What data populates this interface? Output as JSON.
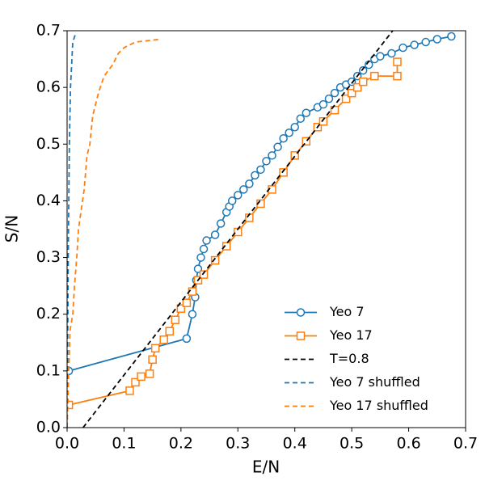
{
  "chart_data": {
    "type": "line",
    "xlabel": "E/N",
    "ylabel": "S/N",
    "xlim": [
      0,
      0.7
    ],
    "ylim": [
      0,
      0.7
    ],
    "xticks": [
      {
        "value": 0,
        "label": "0.0"
      },
      0.1,
      0.2,
      0.3,
      0.4,
      0.5,
      0.6,
      0.7
    ],
    "yticks": [
      {
        "value": 0,
        "label": "0.0"
      },
      0.1,
      0.2,
      0.3,
      0.4,
      0.5,
      0.6,
      0.7
    ],
    "legend": "lower right",
    "series": [
      {
        "name": "Yeo 7",
        "color": "#1f77b4",
        "marker": "circle",
        "dashed": false,
        "x": [
          0.003,
          0.21,
          0.22,
          0.225,
          0.227,
          0.23,
          0.235,
          0.24,
          0.245,
          0.26,
          0.27,
          0.28,
          0.285,
          0.29,
          0.3,
          0.31,
          0.32,
          0.33,
          0.34,
          0.35,
          0.36,
          0.37,
          0.38,
          0.39,
          0.4,
          0.41,
          0.42,
          0.44,
          0.45,
          0.46,
          0.47,
          0.48,
          0.49,
          0.5,
          0.51,
          0.52,
          0.53,
          0.54,
          0.55,
          0.57,
          0.59,
          0.61,
          0.63,
          0.65,
          0.675
        ],
        "values": [
          0.1,
          0.157,
          0.2,
          0.23,
          0.26,
          0.28,
          0.3,
          0.315,
          0.33,
          0.34,
          0.36,
          0.38,
          0.39,
          0.4,
          0.41,
          0.42,
          0.43,
          0.445,
          0.455,
          0.47,
          0.48,
          0.495,
          0.51,
          0.52,
          0.53,
          0.545,
          0.555,
          0.565,
          0.57,
          0.58,
          0.59,
          0.6,
          0.605,
          0.61,
          0.62,
          0.63,
          0.64,
          0.65,
          0.655,
          0.66,
          0.67,
          0.675,
          0.68,
          0.685,
          0.69
        ]
      },
      {
        "name": "Yeo 17",
        "color": "#ff7f0e",
        "marker": "square",
        "dashed": false,
        "x": [
          0.003,
          0.11,
          0.12,
          0.13,
          0.145,
          0.15,
          0.155,
          0.17,
          0.18,
          0.19,
          0.2,
          0.21,
          0.22,
          0.23,
          0.24,
          0.26,
          0.28,
          0.3,
          0.32,
          0.34,
          0.36,
          0.38,
          0.4,
          0.42,
          0.44,
          0.45,
          0.47,
          0.49,
          0.5,
          0.51,
          0.52,
          0.54,
          0.58,
          0.58
        ],
        "values": [
          0.04,
          0.065,
          0.08,
          0.09,
          0.095,
          0.12,
          0.14,
          0.155,
          0.17,
          0.19,
          0.21,
          0.22,
          0.24,
          0.26,
          0.27,
          0.295,
          0.32,
          0.345,
          0.37,
          0.395,
          0.42,
          0.45,
          0.48,
          0.505,
          0.53,
          0.54,
          0.56,
          0.58,
          0.59,
          0.6,
          0.61,
          0.62,
          0.62,
          0.645
        ]
      },
      {
        "name": "T=0.8",
        "color": "#000000",
        "marker": "none",
        "dashed": true,
        "x": [
          0.028,
          0.572
        ],
        "values": [
          0,
          0.7
        ]
      },
      {
        "name": "Yeo 7 shuffled",
        "color": "#1f77b4",
        "marker": "none",
        "dashed": true,
        "x": [
          0,
          0.002,
          0.004,
          0.006,
          0.01,
          0.015
        ],
        "values": [
          0,
          0.3,
          0.5,
          0.6,
          0.68,
          0.695
        ]
      },
      {
        "name": "Yeo 17 shuffled",
        "color": "#ff7f0e",
        "marker": "none",
        "dashed": true,
        "x": [
          0,
          0.003,
          0.005,
          0.01,
          0.013,
          0.017,
          0.02,
          0.03,
          0.035,
          0.04,
          0.045,
          0.055,
          0.065,
          0.08,
          0.09,
          0.1,
          0.12,
          0.165
        ],
        "values": [
          0,
          0.1,
          0.17,
          0.2,
          0.25,
          0.3,
          0.35,
          0.42,
          0.48,
          0.5,
          0.55,
          0.59,
          0.62,
          0.64,
          0.66,
          0.67,
          0.68,
          0.685
        ]
      }
    ]
  }
}
